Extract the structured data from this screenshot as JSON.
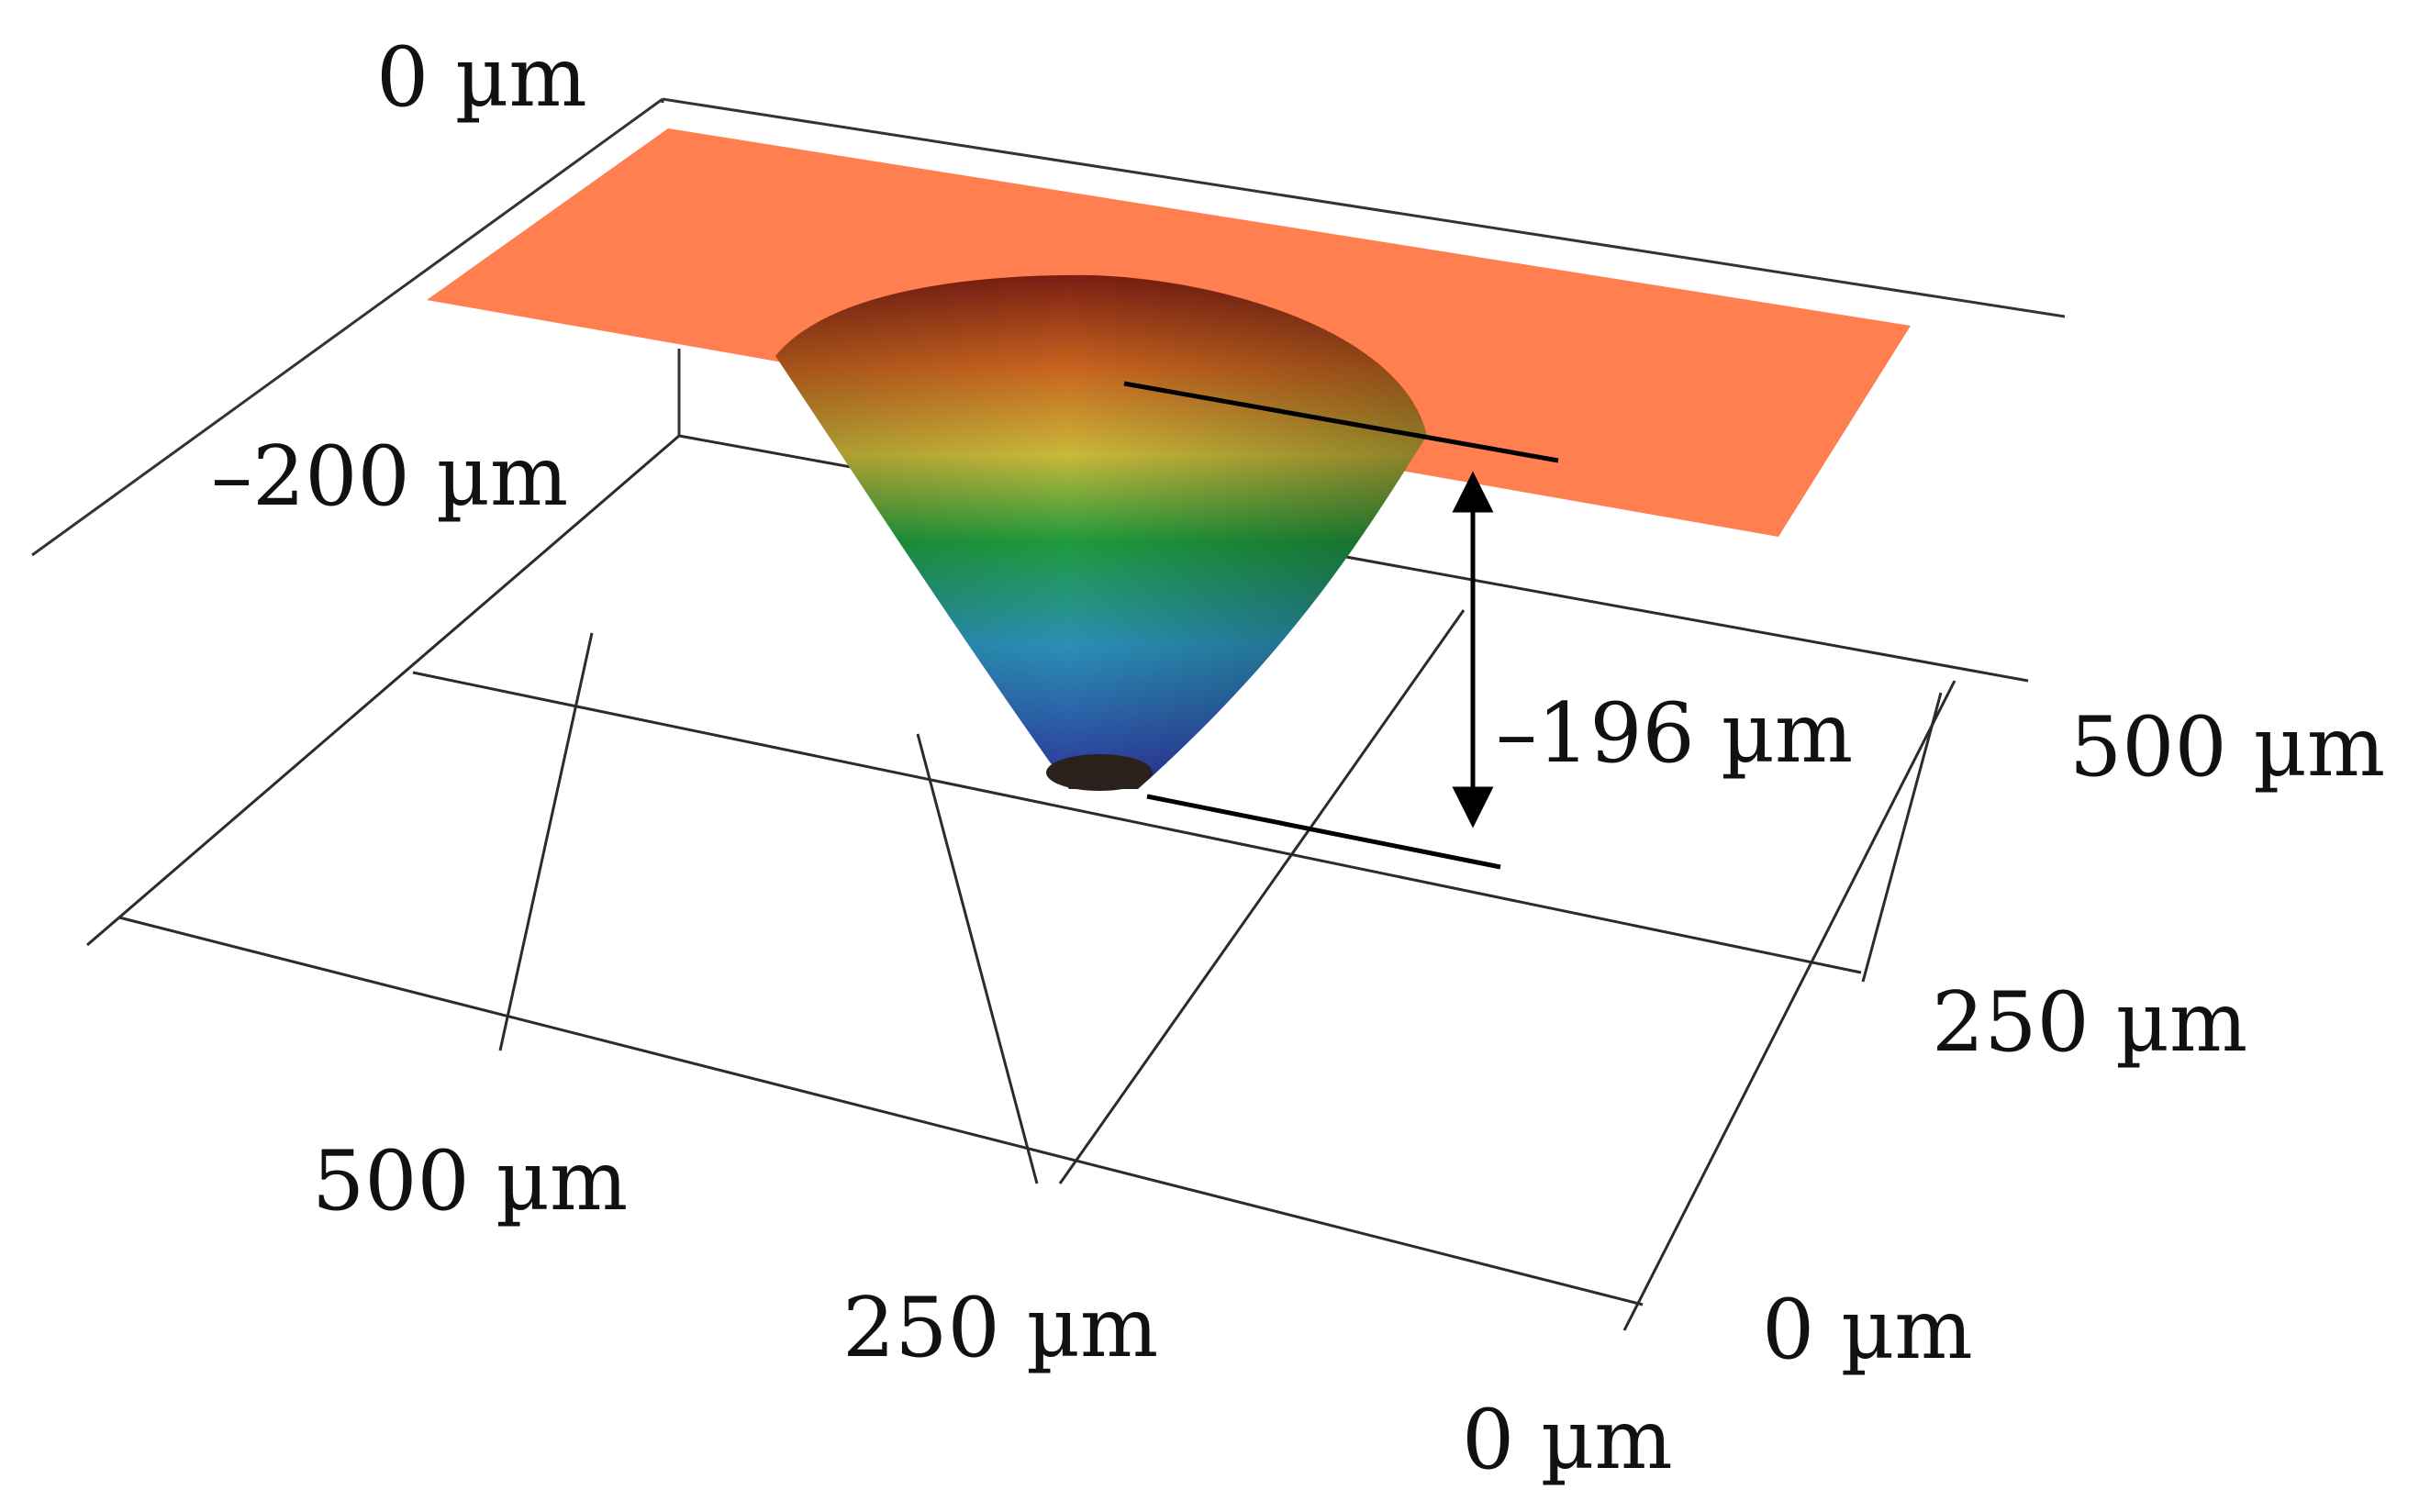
{
  "chart_data": {
    "type": "surface",
    "depth_scale": {
      "top_label": "0 µm",
      "bottom_label": "–200 µm",
      "range": [
        -200,
        0
      ]
    },
    "front_axis": {
      "ticks": [
        {
          "value": 0,
          "label": "0 µm"
        },
        {
          "value": 250,
          "label": "250 µm"
        },
        {
          "value": 500,
          "label": "500 µm"
        }
      ],
      "range": [
        0,
        750
      ]
    },
    "side_axis": {
      "ticks": [
        {
          "value": 0,
          "label": "0 µm"
        },
        {
          "value": 250,
          "label": "250 µm"
        },
        {
          "value": 500,
          "label": "500 µm"
        }
      ],
      "range": [
        0,
        500
      ]
    },
    "feature": {
      "shape": "conical pit",
      "depth": -196,
      "depth_label": "–196 µm"
    },
    "colors": {
      "surface": "#ff7f50",
      "colormap": [
        "#2b1f1a",
        "#2d3f9e",
        "#2a8fb5",
        "#1e9a3c",
        "#c9b83a",
        "#c8641f",
        "#7a1e14"
      ],
      "annotation": "#000000"
    }
  }
}
